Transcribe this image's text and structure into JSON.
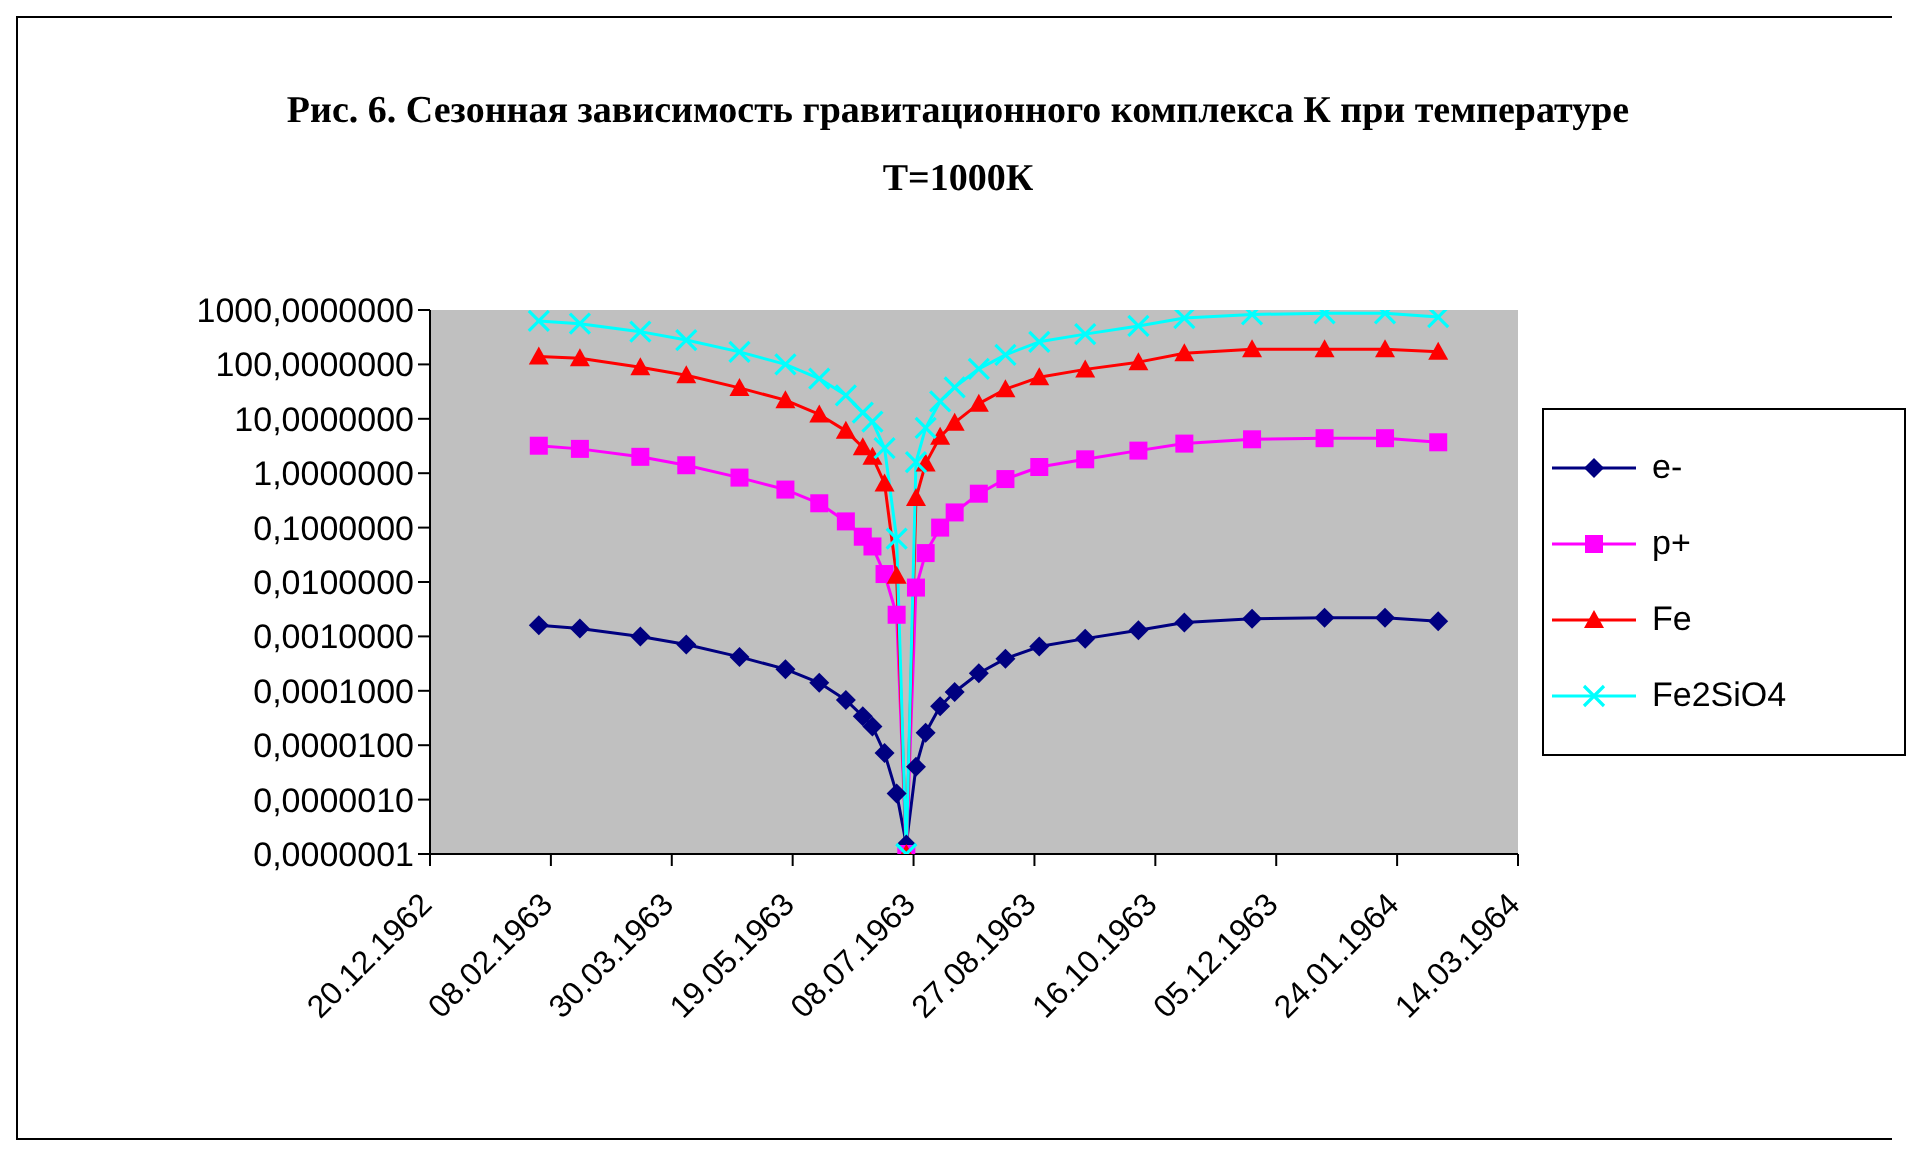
{
  "chart_data": {
    "type": "line",
    "title": "Рис. 6. Сезонная зависимость гравитационного комплекса К при температуре Т=1000К",
    "x": [
      "1963-02-03",
      "1963-02-20",
      "1963-03-17",
      "1963-04-05",
      "1963-04-27",
      "1963-05-16",
      "1963-05-30",
      "1963-06-10",
      "1963-06-17",
      "1963-06-21",
      "1963-06-26",
      "1963-07-01",
      "1963-07-05",
      "1963-07-09",
      "1963-07-13",
      "1963-07-19",
      "1963-07-25",
      "1963-08-04",
      "1963-08-15",
      "1963-08-29",
      "1963-09-17",
      "1963-10-09",
      "1963-10-28",
      "1963-11-25",
      "1963-12-25",
      "1964-01-19",
      "1964-02-10"
    ],
    "series": [
      {
        "name": "e-",
        "color": "#000080",
        "marker": "diamond",
        "values": [
          0.0016,
          0.0014,
          0.001,
          0.00071,
          0.00042,
          0.00025,
          0.00014,
          6.8e-05,
          3.4e-05,
          2.2e-05,
          7.2e-06,
          1.3e-06,
          1.5e-07,
          4e-06,
          1.7e-05,
          5.2e-05,
          9.5e-05,
          0.00021,
          0.00039,
          0.00065,
          0.00091,
          0.0013,
          0.0018,
          0.0021,
          0.0022,
          0.0022,
          0.0019
        ]
      },
      {
        "name": "p+",
        "color": "#ff00ff",
        "marker": "square",
        "values": [
          3.2,
          2.8,
          2,
          1.4,
          0.83,
          0.5,
          0.28,
          0.13,
          0.068,
          0.045,
          0.014,
          0.0025,
          1e-07,
          0.0079,
          0.034,
          0.1,
          0.19,
          0.42,
          0.78,
          1.3,
          1.8,
          2.6,
          3.5,
          4.2,
          4.4,
          4.4,
          3.7
        ]
      },
      {
        "name": "Fe",
        "color": "#ff0000",
        "marker": "triangle",
        "values": [
          140,
          130,
          89,
          63,
          37,
          22,
          12,
          6,
          3,
          2,
          0.65,
          0.013,
          1e-07,
          0.35,
          1.5,
          4.7,
          8.5,
          19,
          35,
          58,
          81,
          110,
          160,
          190,
          190,
          190,
          170
        ]
      },
      {
        "name": "Fe2SiO4",
        "color": "#00ffff",
        "marker": "cross",
        "values": [
          630,
          560,
          400,
          280,
          170,
          100,
          55,
          27,
          13,
          8.9,
          2.9,
          0.063,
          1e-07,
          1.6,
          6.8,
          21,
          38,
          83,
          150,
          260,
          360,
          510,
          710,
          830,
          870,
          870,
          740
        ]
      }
    ],
    "log": "y",
    "xlim": [
      "1962-12-20",
      "1964-03-14"
    ],
    "xticks": [
      {
        "value": "1962-12-20",
        "label": "20.12.1962"
      },
      {
        "value": "1963-02-08",
        "label": "08.02.1963"
      },
      {
        "value": "1963-03-30",
        "label": "30.03.1963"
      },
      {
        "value": "1963-05-19",
        "label": "19.05.1963"
      },
      {
        "value": "1963-07-08",
        "label": "08.07.1963"
      },
      {
        "value": "1963-08-27",
        "label": "27.08.1963"
      },
      {
        "value": "1963-10-16",
        "label": "16.10.1963"
      },
      {
        "value": "1963-12-05",
        "label": "05.12.1963"
      },
      {
        "value": "1964-01-24",
        "label": "24.01.1964"
      },
      {
        "value": "1964-03-14",
        "label": "14.03.1964"
      }
    ],
    "ylim": [
      1e-07,
      1000
    ],
    "yticks": [
      {
        "value": 1000,
        "label": "1000,0000000"
      },
      {
        "value": 100,
        "label": "100,0000000"
      },
      {
        "value": 10,
        "label": "10,0000000"
      },
      {
        "value": 1,
        "label": "1,0000000"
      },
      {
        "value": 0.1,
        "label": "0,1000000"
      },
      {
        "value": 0.01,
        "label": "0,0100000"
      },
      {
        "value": 0.001,
        "label": "0,0010000"
      },
      {
        "value": 0.0001,
        "label": "0,0001000"
      },
      {
        "value": 1e-05,
        "label": "0,0000100"
      },
      {
        "value": 1e-06,
        "label": "0,0000010"
      },
      {
        "value": 1e-07,
        "label": "0,0000001"
      }
    ],
    "legend": "right",
    "line_style": "solid"
  }
}
